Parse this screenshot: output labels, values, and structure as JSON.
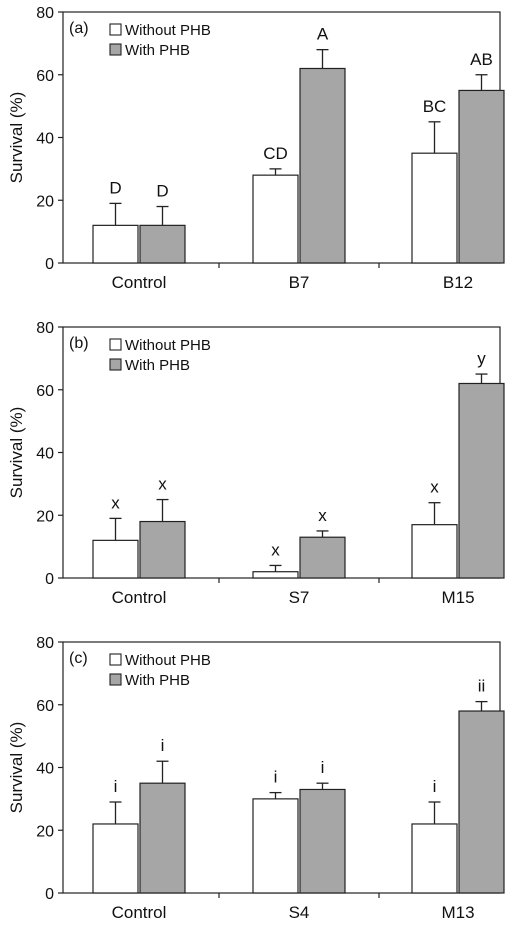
{
  "chart_data": [
    {
      "type": "bar",
      "panel_label": "(a)",
      "categories": [
        "Control",
        "B7",
        "B12"
      ],
      "ylabel": "Survival (%)",
      "xlabel": "",
      "ylim": [
        0,
        80
      ],
      "yticks": [
        "0",
        "20",
        "40",
        "60",
        "80"
      ],
      "legend_position": "top-left",
      "series": [
        {
          "name": "Without PHB",
          "color": "#ffffff",
          "values": [
            12,
            28,
            35
          ],
          "errors": [
            7,
            2,
            10
          ],
          "letters": [
            "D",
            "CD",
            "BC"
          ]
        },
        {
          "name": "With PHB",
          "color": "#a6a6a6",
          "values": [
            12,
            62,
            55
          ],
          "errors": [
            6,
            6,
            5
          ],
          "letters": [
            "D",
            "A",
            "AB"
          ]
        }
      ]
    },
    {
      "type": "bar",
      "panel_label": "(b)",
      "categories": [
        "Control",
        "S7",
        "M15"
      ],
      "ylabel": "Survival (%)",
      "xlabel": "",
      "ylim": [
        0,
        80
      ],
      "yticks": [
        "0",
        "20",
        "40",
        "60",
        "80"
      ],
      "legend_position": "top-left",
      "series": [
        {
          "name": "Without PHB",
          "color": "#ffffff",
          "values": [
            12,
            2,
            17
          ],
          "errors": [
            7,
            2,
            7
          ],
          "letters": [
            "x",
            "x",
            "x"
          ]
        },
        {
          "name": "With PHB",
          "color": "#a6a6a6",
          "values": [
            18,
            13,
            62
          ],
          "errors": [
            7,
            2,
            3
          ],
          "letters": [
            "x",
            "x",
            "y"
          ]
        }
      ]
    },
    {
      "type": "bar",
      "panel_label": "(c)",
      "categories": [
        "Control",
        "S4",
        "M13"
      ],
      "ylabel": "Survival (%)",
      "xlabel": "",
      "ylim": [
        0,
        80
      ],
      "yticks": [
        "0",
        "20",
        "40",
        "60",
        "80"
      ],
      "legend_position": "top-left",
      "series": [
        {
          "name": "Without PHB",
          "color": "#ffffff",
          "values": [
            22,
            30,
            22
          ],
          "errors": [
            7,
            2,
            7
          ],
          "letters": [
            "i",
            "i",
            "i"
          ]
        },
        {
          "name": "With PHB",
          "color": "#a6a6a6",
          "values": [
            35,
            33,
            58
          ],
          "errors": [
            7,
            2,
            3
          ],
          "letters": [
            "i",
            "i",
            "ii"
          ]
        }
      ]
    }
  ]
}
